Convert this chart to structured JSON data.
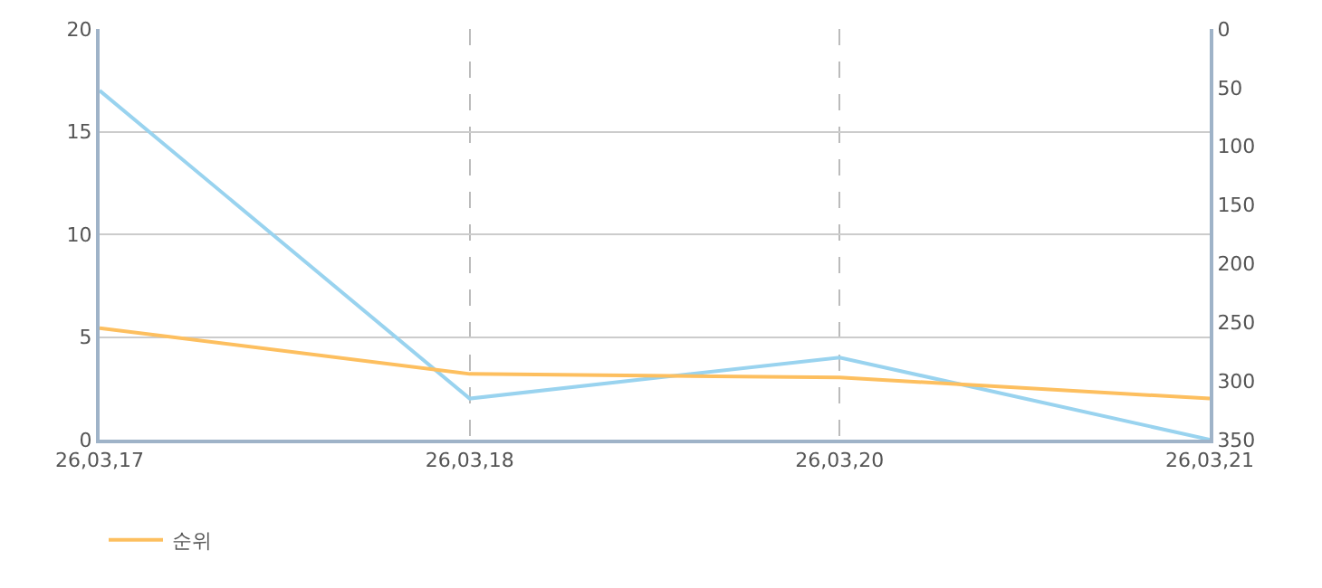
{
  "chart_data": {
    "type": "line",
    "categories": [
      "26,03,17",
      "26,03,18",
      "26,03,20",
      "26,03,21"
    ],
    "series": [
      {
        "color": "#99d3ef",
        "values": [
          17,
          2,
          4,
          0
        ]
      },
      {
        "name": "순위",
        "color": "#fdbf5f",
        "axis": "y2",
        "values": [
          255,
          294,
          297,
          315
        ]
      }
    ],
    "ylim": [
      0,
      20
    ],
    "yticks": [
      0,
      5,
      10,
      15,
      20
    ],
    "y2lim": [
      350,
      0
    ],
    "y2ticks": [
      0,
      50,
      100,
      150,
      200,
      250,
      300,
      350
    ],
    "grid": true,
    "legend": "bottom left",
    "marker": "none",
    "line_style": "solid"
  }
}
